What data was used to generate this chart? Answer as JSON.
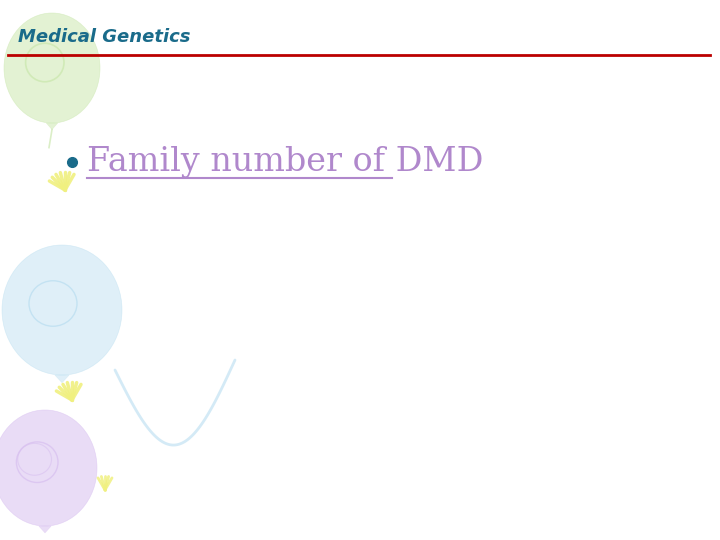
{
  "title": "Medical Genetics",
  "title_color": "#1a6b8a",
  "title_fontsize": 13,
  "divider_color": "#bb0000",
  "bullet_text": "Family number of DMD",
  "bullet_text_color": "#b088cc",
  "bullet_color": "#1a6b8a",
  "bullet_fontsize": 24,
  "bg_color": "#ffffff",
  "green_balloon_color": "#cce8b0",
  "green_balloon_alpha": 0.55,
  "blue_balloon_color": "#b8ddf0",
  "blue_balloon_alpha": 0.45,
  "purple_balloon_color": "#d8c0f0",
  "purple_balloon_alpha": 0.55,
  "yellow_color": "#f0f080",
  "blue_ribbon_color": "#b8ddf0",
  "underline_color": "#b088cc"
}
